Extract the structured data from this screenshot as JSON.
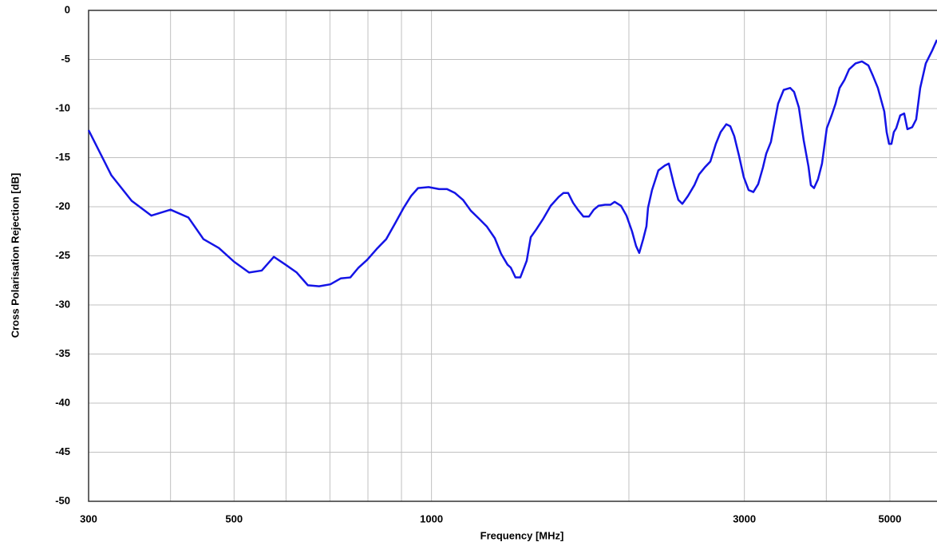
{
  "chart_data": {
    "type": "line",
    "x_label": "Frequency [MHz]",
    "y_label": "Cross Polarisation Rejection [dB]",
    "x_log": true,
    "grid": true,
    "xlim": [
      300,
      5900
    ],
    "ylim": [
      -50,
      0
    ],
    "xticks": [
      300,
      500,
      1000,
      3000,
      5000
    ],
    "minor_xticks": [
      400,
      600,
      700,
      800,
      900,
      2000,
      4000
    ],
    "yticks": [
      0,
      -5,
      -10,
      -15,
      -20,
      -25,
      -30,
      -35,
      -40,
      -45,
      -50
    ],
    "x": [
      300,
      325,
      349,
      374,
      400,
      426,
      449,
      474,
      500,
      527,
      551,
      575,
      599,
      623,
      648,
      674,
      701,
      727,
      752,
      774,
      798,
      825,
      853,
      880,
      907,
      931,
      954,
      990,
      1027,
      1056,
      1086,
      1117,
      1148,
      1181,
      1214,
      1249,
      1277,
      1306,
      1321,
      1343,
      1366,
      1397,
      1417,
      1445,
      1478,
      1520,
      1563,
      1589,
      1616,
      1644,
      1672,
      1705,
      1738,
      1768,
      1798,
      1839,
      1875,
      1902,
      1945,
      1983,
      2022,
      2051,
      2074,
      2103,
      2127,
      2139,
      2169,
      2218,
      2269,
      2301,
      2346,
      2379,
      2413,
      2461,
      2517,
      2559,
      2610,
      2662,
      2714,
      2760,
      2815,
      2855,
      2895,
      2944,
      2994,
      3045,
      3096,
      3149,
      3202,
      3239,
      3293,
      3331,
      3377,
      3444,
      3523,
      3572,
      3633,
      3694,
      3757,
      3789,
      3831,
      3885,
      3940,
      4007,
      4075,
      4132,
      4191,
      4262,
      4334,
      4432,
      4533,
      4636,
      4714,
      4794,
      4848,
      4903,
      4944,
      4986,
      5028,
      5070,
      5113,
      5185,
      5258,
      5318,
      5408,
      5484,
      5562,
      5672,
      5800,
      5899
    ],
    "series": [
      {
        "name": "Cross polarisation rejection",
        "color": "#1414e6",
        "values": [
          -12.2,
          -16.8,
          -19.4,
          -20.9,
          -20.3,
          -21.1,
          -23.3,
          -24.2,
          -25.6,
          -26.7,
          -26.5,
          -25.1,
          -25.9,
          -26.7,
          -28.0,
          -28.1,
          -27.9,
          -27.3,
          -27.2,
          -26.2,
          -25.4,
          -24.3,
          -23.3,
          -21.7,
          -20.1,
          -18.9,
          -18.1,
          -18.0,
          -18.2,
          -18.2,
          -18.6,
          -19.3,
          -20.4,
          -21.2,
          -22.0,
          -23.2,
          -24.8,
          -25.9,
          -26.2,
          -27.2,
          -27.2,
          -25.5,
          -23.1,
          -22.3,
          -21.3,
          -19.9,
          -19.0,
          -18.6,
          -18.6,
          -19.6,
          -20.3,
          -21.0,
          -21.0,
          -20.3,
          -19.9,
          -19.8,
          -19.8,
          -19.5,
          -19.9,
          -20.9,
          -22.5,
          -24.0,
          -24.7,
          -23.3,
          -22.0,
          -20.1,
          -18.3,
          -16.3,
          -15.8,
          -15.6,
          -17.9,
          -19.3,
          -19.7,
          -18.9,
          -17.8,
          -16.7,
          -16.0,
          -15.4,
          -13.6,
          -12.4,
          -11.6,
          -11.8,
          -12.8,
          -14.8,
          -17.0,
          -18.3,
          -18.5,
          -17.7,
          -16.0,
          -14.6,
          -13.4,
          -11.6,
          -9.5,
          -8.1,
          -7.9,
          -8.3,
          -9.9,
          -13.2,
          -15.9,
          -17.8,
          -18.1,
          -17.2,
          -15.6,
          -12.0,
          -10.7,
          -9.5,
          -7.9,
          -7.1,
          -6.0,
          -5.4,
          -5.2,
          -5.6,
          -6.7,
          -7.9,
          -9.1,
          -10.3,
          -12.4,
          -13.6,
          -13.6,
          -12.4,
          -12.0,
          -10.7,
          -10.5,
          -12.1,
          -11.9,
          -11.1,
          -7.9,
          -5.4,
          -4.1,
          -3.0
        ]
      }
    ]
  }
}
